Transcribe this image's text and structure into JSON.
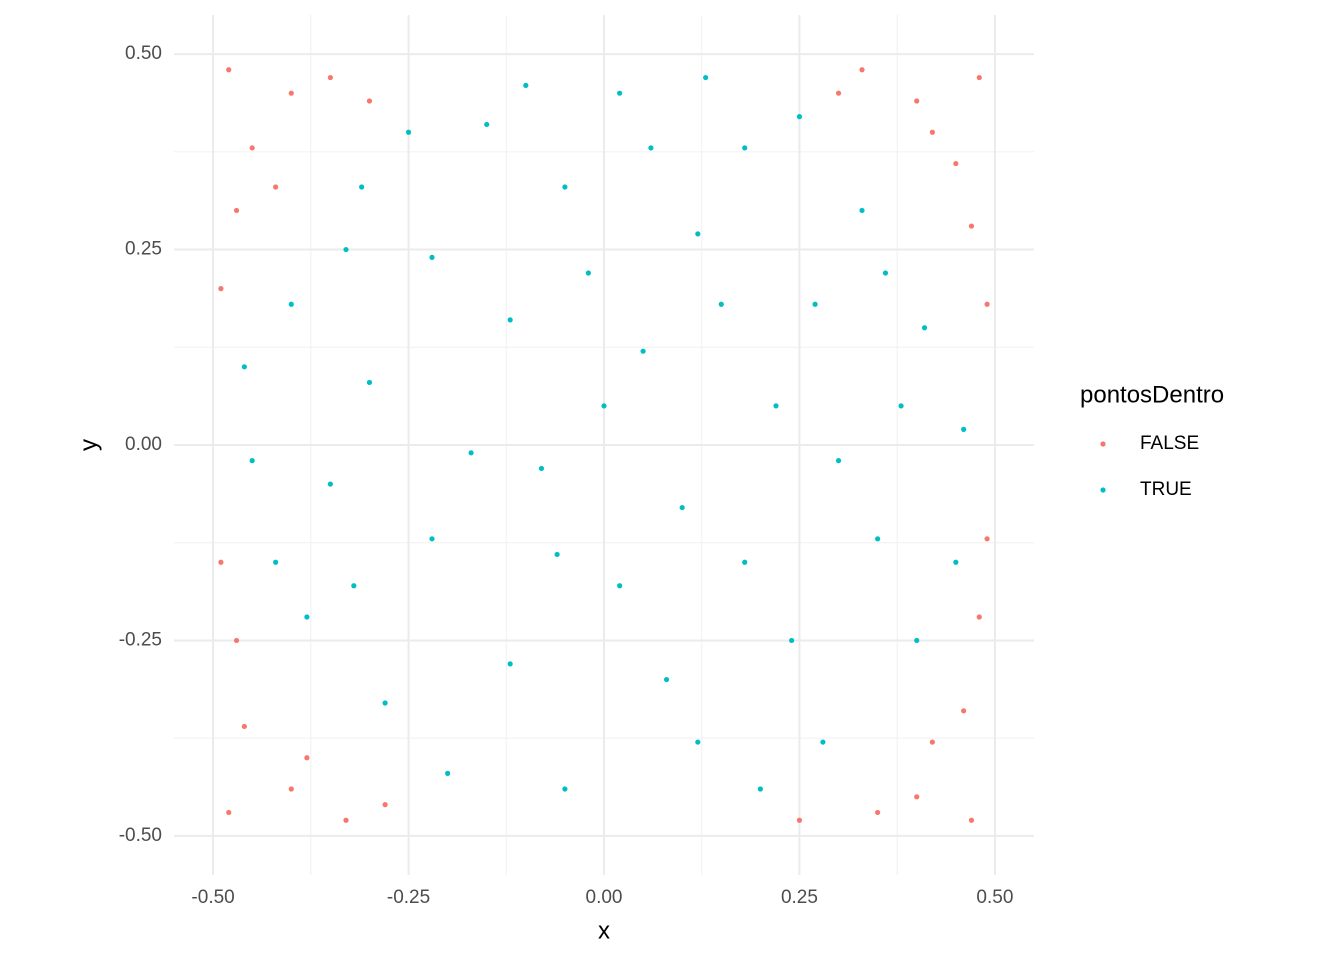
{
  "chart_data": {
    "type": "scatter",
    "x_label": "x",
    "y_label": "y",
    "xlim": [
      -0.55,
      0.55
    ],
    "ylim": [
      -0.55,
      0.55
    ],
    "xticks": [
      {
        "value": -0.5,
        "label": "-0.50"
      },
      {
        "value": -0.25,
        "label": "-0.25"
      },
      {
        "value": 0,
        "label": "0.00"
      },
      {
        "value": 0.25,
        "label": "0.25"
      },
      {
        "value": 0.5,
        "label": "0.50"
      }
    ],
    "yticks": [
      {
        "value": -0.5,
        "label": "-0.50"
      },
      {
        "value": -0.25,
        "label": "-0.25"
      },
      {
        "value": 0,
        "label": "0.00"
      },
      {
        "value": 0.25,
        "label": "0.25"
      },
      {
        "value": 0.5,
        "label": "0.50"
      }
    ],
    "minor_grid": [
      -0.375,
      -0.125,
      0.125,
      0.375
    ],
    "grid": true,
    "legend_title": "pontosDentro",
    "legend": "right",
    "series": [
      {
        "name": "FALSE",
        "color": "#F8766D",
        "x": [
          -0.48,
          -0.4,
          -0.45,
          -0.35,
          -0.47,
          -0.3,
          -0.49,
          -0.42,
          0.48,
          0.4,
          0.45,
          0.33,
          0.47,
          0.3,
          0.49,
          0.42,
          -0.48,
          -0.4,
          -0.46,
          -0.33,
          -0.47,
          -0.28,
          -0.49,
          -0.38,
          0.47,
          0.4,
          0.46,
          0.35,
          0.48,
          0.25,
          0.49,
          0.42
        ],
        "values": [
          0.48,
          0.45,
          0.38,
          0.47,
          0.3,
          0.44,
          0.2,
          0.33,
          0.47,
          0.44,
          0.36,
          0.48,
          0.28,
          0.45,
          0.18,
          0.4,
          -0.47,
          -0.44,
          -0.36,
          -0.48,
          -0.25,
          -0.46,
          -0.15,
          -0.4,
          -0.48,
          -0.45,
          -0.34,
          -0.47,
          -0.22,
          -0.48,
          -0.12,
          -0.38
        ]
      },
      {
        "name": "TRUE",
        "color": "#00BFC4",
        "x": [
          0.02,
          -0.15,
          0.18,
          -0.31,
          0.33,
          -0.05,
          0.12,
          -0.22,
          0.27,
          -0.4,
          0.41,
          -0.12,
          0.05,
          -0.3,
          0.22,
          0.46,
          -0.45,
          -0.08,
          0.1,
          0.35,
          -0.22,
          -0.38,
          0.02,
          0.24,
          -0.12,
          0.4,
          -0.28,
          0.12,
          -0.05,
          0.28,
          -0.2,
          0.06,
          -0.25,
          0.25,
          0.38,
          -0.35,
          0.15,
          -0.02,
          0.3,
          -0.17,
          0.08,
          -0.33,
          0.45,
          -0.46,
          0.18,
          -0.06,
          0.36,
          -0.1,
          0.13,
          -0.42,
          0.2,
          -0.32,
          0.0
        ],
        "values": [
          0.45,
          0.41,
          0.38,
          0.33,
          0.3,
          0.33,
          0.27,
          0.24,
          0.18,
          0.18,
          0.15,
          0.16,
          0.12,
          0.08,
          0.05,
          0.02,
          -0.02,
          -0.03,
          -0.08,
          -0.12,
          -0.12,
          -0.22,
          -0.18,
          -0.25,
          -0.28,
          -0.25,
          -0.33,
          -0.38,
          -0.44,
          -0.38,
          -0.42,
          0.38,
          0.4,
          0.42,
          0.05,
          -0.05,
          0.18,
          0.22,
          -0.02,
          -0.01,
          -0.3,
          0.25,
          -0.15,
          0.1,
          -0.15,
          -0.14,
          0.22,
          0.46,
          0.47,
          -0.15,
          -0.44,
          -0.18,
          0.05
        ]
      }
    ]
  }
}
